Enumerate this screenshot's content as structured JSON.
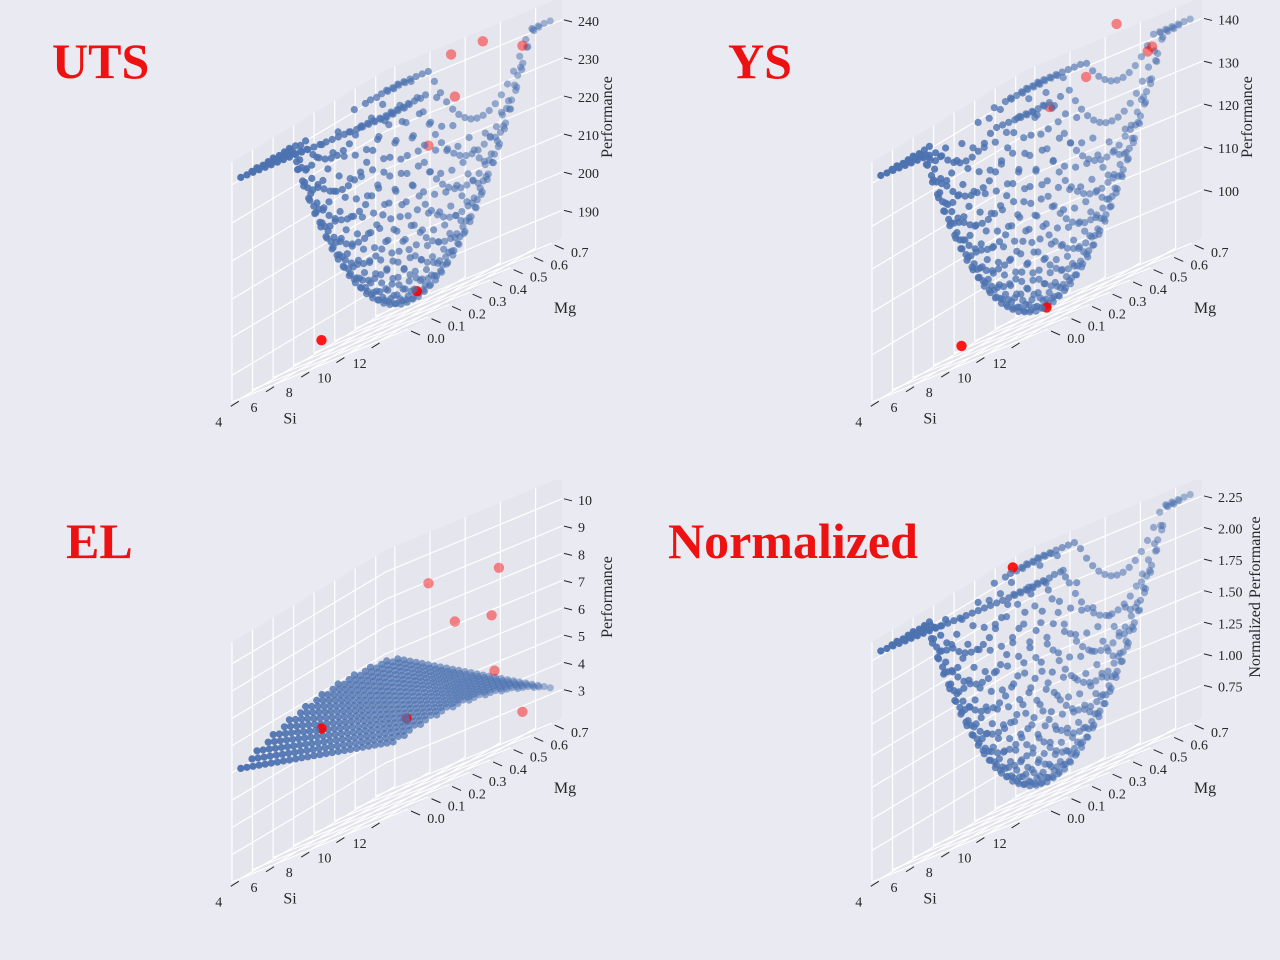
{
  "figure": {
    "panels": [
      {
        "title": "UTS"
      },
      {
        "title": "YS"
      },
      {
        "title": "EL"
      },
      {
        "title": "Normalized"
      }
    ]
  },
  "chart_data": [
    {
      "type": "scatter3d",
      "title": "UTS",
      "xlabel": "Si",
      "ylabel": "Mg",
      "zlabel": "Performance",
      "xticks": [
        4,
        6,
        8,
        10,
        12
      ],
      "yticks": [
        "0.0",
        "0.1",
        "0.2",
        "0.3",
        "0.4",
        "0.5",
        "0.6",
        "0.7"
      ],
      "zticks": [
        190,
        200,
        210,
        220,
        230,
        240
      ],
      "xlim": [
        3.5,
        13.5
      ],
      "ylim": [
        0,
        0.75
      ],
      "zlim": [
        183,
        246
      ],
      "grid": true,
      "surface": {
        "kind": "bowl",
        "center_si": 8.8,
        "center_mg": 0.42,
        "min_z": 186,
        "max_z": 241
      },
      "point_color": "#4c72b0",
      "highlight_color": "#ff0000",
      "highlighted_points": [
        {
          "si": 8.0,
          "mg": 0.05,
          "z": 189
        },
        {
          "si": 10.5,
          "mg": 0.3,
          "z": 189
        },
        {
          "si": 6.5,
          "mg": 0.7,
          "z": 222
        },
        {
          "si": 8.0,
          "mg": 0.7,
          "z": 232
        },
        {
          "si": 7.2,
          "mg": 0.75,
          "z": 243
        },
        {
          "si": 9.0,
          "mg": 0.75,
          "z": 243
        },
        {
          "si": 13.0,
          "mg": 0.6,
          "z": 239
        }
      ]
    },
    {
      "type": "scatter3d",
      "title": "YS",
      "xlabel": "Si",
      "ylabel": "Mg",
      "zlabel": "Performance",
      "xticks": [
        4,
        6,
        8,
        10,
        12
      ],
      "yticks": [
        "0.0",
        "0.1",
        "0.2",
        "0.3",
        "0.4",
        "0.5",
        "0.6",
        "0.7"
      ],
      "zticks": [
        100,
        110,
        120,
        130,
        140
      ],
      "xlim": [
        3.5,
        13.5
      ],
      "ylim": [
        0,
        0.75
      ],
      "zlim": [
        89,
        145
      ],
      "grid": true,
      "surface": {
        "kind": "bowl",
        "center_si": 8.8,
        "center_mg": 0.38,
        "min_z": 91,
        "max_z": 141
      },
      "point_color": "#4c72b0",
      "highlight_color": "#ff0000",
      "highlighted_points": [
        {
          "si": 8.0,
          "mg": 0.05,
          "z": 93
        },
        {
          "si": 10.5,
          "mg": 0.25,
          "z": 92
        },
        {
          "si": 6.0,
          "mg": 0.65,
          "z": 135
        },
        {
          "si": 7.5,
          "mg": 0.7,
          "z": 138
        },
        {
          "si": 9.0,
          "mg": 0.72,
          "z": 148
        },
        {
          "si": 11.0,
          "mg": 0.7,
          "z": 138
        },
        {
          "si": 13.0,
          "mg": 0.55,
          "z": 140
        }
      ]
    },
    {
      "type": "scatter3d",
      "title": "EL",
      "xlabel": "Si",
      "ylabel": "Mg",
      "zlabel": "Performance",
      "xticks": [
        4,
        6,
        8,
        10,
        12
      ],
      "yticks": [
        "0.0",
        "0.1",
        "0.2",
        "0.3",
        "0.4",
        "0.5",
        "0.6",
        "0.7"
      ],
      "zticks": [
        3,
        4,
        5,
        6,
        7,
        8,
        9,
        10
      ],
      "xlim": [
        3.5,
        13.5
      ],
      "ylim": [
        0,
        0.75
      ],
      "zlim": [
        2,
        10.8
      ],
      "grid": true,
      "surface": {
        "kind": "ridge",
        "min_z": 2.6,
        "max_z": 10.4
      },
      "point_color": "#4c72b0",
      "highlight_color": "#ff0000",
      "highlighted_points": [
        {
          "si": 8.0,
          "mg": 0.05,
          "z": 6.2
        },
        {
          "si": 10.5,
          "mg": 0.25,
          "z": 5.0
        },
        {
          "si": 6.5,
          "mg": 0.7,
          "z": 9.0
        },
        {
          "si": 8.0,
          "mg": 0.7,
          "z": 7.2
        },
        {
          "si": 9.5,
          "mg": 0.75,
          "z": 6.8
        },
        {
          "si": 10.5,
          "mg": 0.7,
          "z": 8.5
        },
        {
          "si": 12.0,
          "mg": 0.55,
          "z": 5.0
        },
        {
          "si": 13.0,
          "mg": 0.6,
          "z": 3.0
        }
      ]
    },
    {
      "type": "scatter3d",
      "title": "Normalized",
      "xlabel": "Si",
      "ylabel": "Mg",
      "zlabel": "Normalized Performance",
      "xticks": [
        4,
        6,
        8,
        10,
        12
      ],
      "yticks": [
        "0.0",
        "0.1",
        "0.2",
        "0.3",
        "0.4",
        "0.5",
        "0.6",
        "0.7"
      ],
      "zticks": [
        "0.75",
        "1.00",
        "1.25",
        "1.50",
        "1.75",
        "2.00",
        "2.25"
      ],
      "zticks_values": [
        0.75,
        1.0,
        1.25,
        1.5,
        1.75,
        2.0,
        2.25
      ],
      "xlim": [
        3.5,
        13.5
      ],
      "ylim": [
        0,
        0.75
      ],
      "zlim": [
        0.5,
        2.4
      ],
      "grid": true,
      "surface": {
        "kind": "bowl",
        "center_si": 8.8,
        "center_mg": 0.4,
        "min_z": 0.6,
        "max_z": 2.3
      },
      "point_color": "#4c72b0",
      "highlight_color": "#ff0000",
      "highlighted_points": [
        {
          "si": 4.5,
          "mg": 0.6,
          "z": 2.35
        }
      ]
    }
  ]
}
